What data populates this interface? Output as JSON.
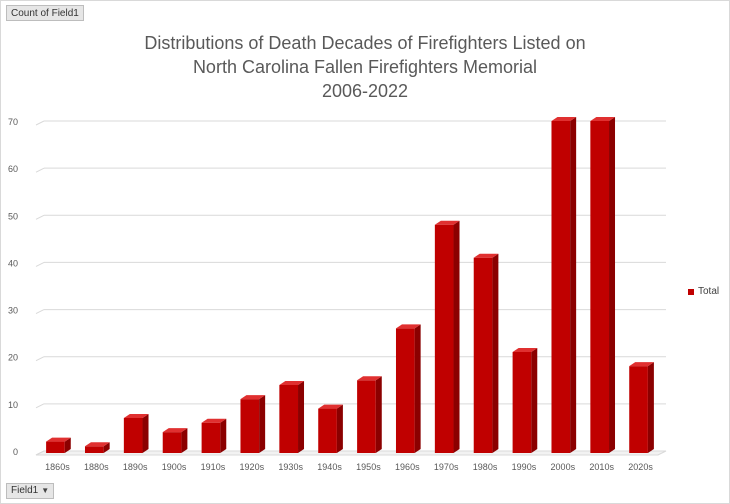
{
  "pivot": {
    "value_field": "Count of Field1",
    "axis_field": "Field1",
    "axis_dropdown_icon": "triangle-down-icon"
  },
  "chart_data": {
    "type": "bar",
    "title_lines": [
      "Distributions of Death Decades of Firefighters Listed on",
      "North Carolina Fallen Firefighters Memorial",
      "2006-2022"
    ],
    "xlabel": "",
    "ylabel": "",
    "categories": [
      "1860s",
      "1880s",
      "1890s",
      "1900s",
      "1910s",
      "1920s",
      "1930s",
      "1940s",
      "1950s",
      "1960s",
      "1970s",
      "1980s",
      "1990s",
      "2000s",
      "2010s",
      "2020s"
    ],
    "series": [
      {
        "name": "Total",
        "values": [
          2,
          1,
          7,
          4,
          6,
          11,
          14,
          9,
          15,
          26,
          48,
          41,
          21,
          70,
          70,
          18
        ],
        "color": "#c00000"
      }
    ],
    "ylim": [
      0,
      70
    ],
    "yticks": [
      0,
      10,
      20,
      30,
      40,
      50,
      60,
      70
    ],
    "grid": true,
    "legend_position": "right"
  }
}
